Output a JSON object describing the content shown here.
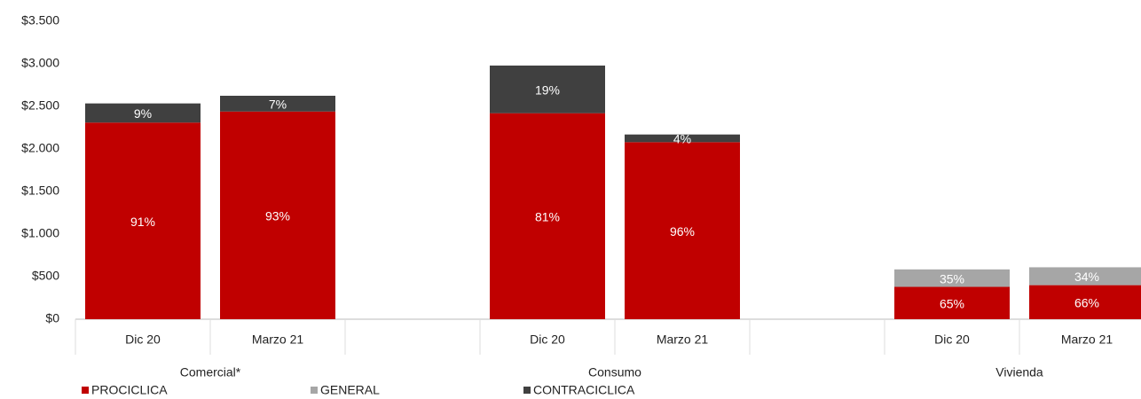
{
  "chart_data": {
    "type": "stacked-bar",
    "categories": [
      "Dic 20",
      "Marzo 21",
      "Dic 20",
      "Marzo 21",
      "Dic 20",
      "Marzo 21"
    ],
    "groups": [
      "Comercial*",
      "Consumo",
      "Vivienda"
    ],
    "series": [
      {
        "name": "PROCICLICA",
        "color": "#c00000",
        "values": [
          2310,
          2440,
          2420,
          2080,
          380,
          400
        ],
        "share_labels": [
          "91%",
          "93%",
          "81%",
          "96%",
          "65%",
          "66%"
        ]
      },
      {
        "name": "GENERAL",
        "color": "#a6a6a6",
        "values": [
          null,
          null,
          null,
          null,
          205,
          210
        ],
        "share_labels": [
          null,
          null,
          null,
          null,
          "35%",
          "34%"
        ]
      },
      {
        "name": "CONTRACICLICA",
        "color": "#404040",
        "values": [
          225,
          185,
          560,
          90,
          null,
          null
        ],
        "share_labels": [
          "9%",
          "7%",
          "19%",
          "4%",
          null,
          null
        ]
      }
    ],
    "ylim": [
      0,
      3500
    ],
    "yticks": [
      {
        "value": 0,
        "label": "$0"
      },
      {
        "value": 500,
        "label": "$500"
      },
      {
        "value": 1000,
        "label": "$1.000"
      },
      {
        "value": 1500,
        "label": "$1.500"
      },
      {
        "value": 2000,
        "label": "$2.000"
      },
      {
        "value": 2500,
        "label": "$2.500"
      },
      {
        "value": 3000,
        "label": "$3.000"
      },
      {
        "value": 3500,
        "label": "$3.500"
      }
    ],
    "grid": false
  }
}
